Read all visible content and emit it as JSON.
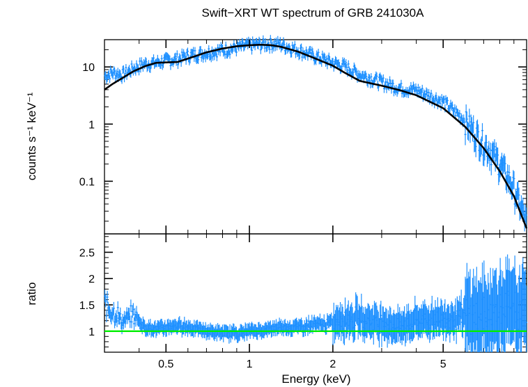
{
  "chart_data": [
    {
      "type": "scatter",
      "panel": "spectrum",
      "title": "Swift−XRT WT spectrum of GRB 241030A",
      "xscale": "log",
      "yscale": "log",
      "xlim": [
        0.3,
        10
      ],
      "ylim": [
        0.012,
        30
      ],
      "ylabel": "counts s⁻¹ keV⁻¹",
      "ytick_values": [
        10,
        1,
        0.1
      ],
      "ytick_labels": [
        "10",
        "1",
        "0.1"
      ],
      "series": [
        {
          "name": "data",
          "color": "#1e90ff",
          "x": [
            0.3,
            0.32,
            0.35,
            0.38,
            0.42,
            0.46,
            0.5,
            0.55,
            0.6,
            0.7,
            0.8,
            0.9,
            1.0,
            1.1,
            1.2,
            1.3,
            1.5,
            1.7,
            2.0,
            2.2,
            2.5,
            3.0,
            3.5,
            4.0,
            5.0,
            6.0,
            7.0,
            8.0,
            9.0,
            10.0
          ],
          "y": [
            7.0,
            8.0,
            7.5,
            9.5,
            11.5,
            12.0,
            13.0,
            14.0,
            16.0,
            18.0,
            20.0,
            22.0,
            24.0,
            25.0,
            26.0,
            25.0,
            20.0,
            16.0,
            12.0,
            10.5,
            7.5,
            5.5,
            4.3,
            4.0,
            2.5,
            1.2,
            0.5,
            0.22,
            0.08,
            0.02
          ]
        },
        {
          "name": "model",
          "color": "#000000",
          "x": [
            0.3,
            0.32,
            0.35,
            0.38,
            0.42,
            0.46,
            0.5,
            0.55,
            0.6,
            0.7,
            0.8,
            0.9,
            1.0,
            1.1,
            1.2,
            1.3,
            1.5,
            1.7,
            2.0,
            2.2,
            2.5,
            3.0,
            3.5,
            4.0,
            5.0,
            6.0,
            7.0,
            8.0,
            9.0,
            10.0
          ],
          "y": [
            4.0,
            5.0,
            6.5,
            8.3,
            10.3,
            11.8,
            12.0,
            12.2,
            14.0,
            18.0,
            21.0,
            23.0,
            24.0,
            24.5,
            24.0,
            22.5,
            18.5,
            14.5,
            10.5,
            8.0,
            5.7,
            4.7,
            3.9,
            3.2,
            1.9,
            0.9,
            0.38,
            0.15,
            0.055,
            0.015
          ]
        }
      ]
    },
    {
      "type": "scatter",
      "panel": "ratio",
      "xscale": "log",
      "xlim": [
        0.3,
        10
      ],
      "ylim": [
        0.6,
        2.85
      ],
      "xlabel": "Energy (keV)",
      "ylabel": "ratio",
      "xtick_values": [
        0.5,
        1,
        2,
        5
      ],
      "xtick_labels": [
        "0.5",
        "1",
        "2",
        "5"
      ],
      "ytick_values": [
        2.5,
        2,
        1.5,
        1
      ],
      "ytick_labels": [
        "2.5",
        "2",
        "1.5",
        "1"
      ],
      "reference_line": {
        "y": 1,
        "color": "#00ee00"
      },
      "series": [
        {
          "name": "ratio",
          "color": "#1e90ff",
          "x": [
            0.3,
            0.32,
            0.35,
            0.38,
            0.42,
            0.46,
            0.5,
            0.55,
            0.6,
            0.7,
            0.8,
            0.9,
            1.0,
            1.1,
            1.2,
            1.3,
            1.5,
            1.7,
            2.0,
            2.2,
            2.5,
            3.0,
            3.5,
            4.0,
            5.0,
            6.0,
            7.0,
            8.0,
            9.0,
            10.0
          ],
          "y": [
            1.6,
            1.55,
            1.2,
            1.4,
            1.1,
            1.05,
            1.08,
            1.12,
            1.1,
            1.0,
            0.95,
            0.95,
            1.0,
            1.02,
            1.05,
            1.1,
            1.1,
            1.15,
            1.18,
            1.3,
            1.3,
            1.2,
            1.1,
            1.25,
            1.3,
            1.35,
            1.35,
            1.5,
            1.5,
            1.4
          ]
        }
      ]
    }
  ]
}
